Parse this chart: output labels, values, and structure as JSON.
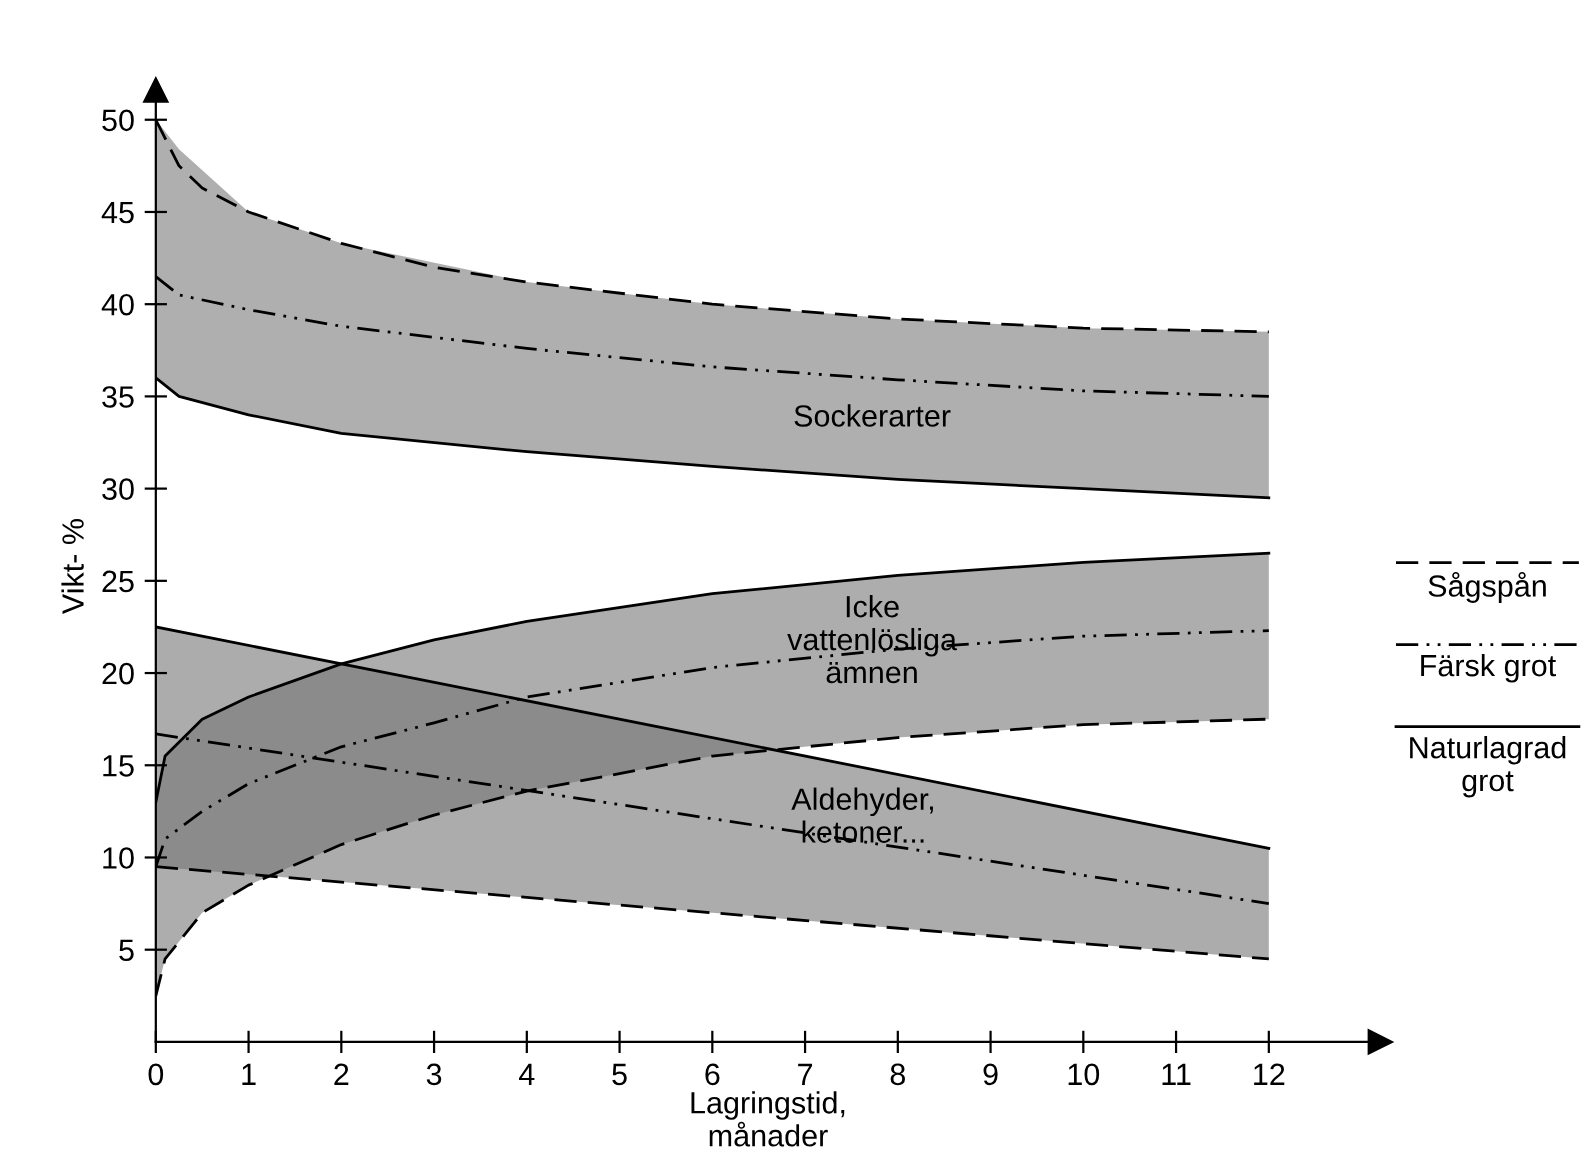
{
  "chart_data": {
    "type": "line",
    "xlabel": "Lagringstid,\nmånader",
    "ylabel": "Vikt- %",
    "xlim": [
      0,
      13.2
    ],
    "ylim": [
      0,
      51.6
    ],
    "xticks": [
      0,
      1,
      2,
      3,
      4,
      5,
      6,
      7,
      8,
      9,
      10,
      11,
      12
    ],
    "yticks": [
      5,
      10,
      15,
      20,
      25,
      30,
      35,
      40,
      45,
      50
    ],
    "grid": false,
    "legend": "right",
    "marker": "none",
    "series": [
      {
        "name": "Sågspån",
        "color": "#000000",
        "line_style": "dashed",
        "x": [
          0,
          0.25,
          0.5,
          1,
          2,
          3,
          4,
          6,
          8,
          10,
          12
        ],
        "values": [
          50,
          47.5,
          46.3,
          45,
          43.3,
          42,
          41.2,
          40,
          39.2,
          38.7,
          38.5
        ]
      },
      {
        "name": "Färsk grot",
        "color": "#000000",
        "line_style": "dashdot",
        "x": [
          0,
          0.25,
          1,
          2,
          4,
          6,
          8,
          10,
          12
        ],
        "values": [
          41.5,
          40.5,
          39.7,
          38.8,
          37.6,
          36.6,
          35.9,
          35.3,
          35
        ],
        "lower": [
          36,
          35,
          34,
          33,
          32,
          31.2,
          30.5,
          30,
          29.5
        ],
        "upper": [
          50,
          48.4,
          45,
          43.3,
          41.2,
          40,
          39.2,
          38.7,
          38.5
        ]
      },
      {
        "name": "Naturlagrad grot",
        "color": "#000000",
        "line_style": "solid",
        "x": [
          0,
          0.25,
          1,
          2,
          4,
          6,
          8,
          10,
          12
        ],
        "values": [
          36,
          35,
          34,
          33,
          32,
          31.2,
          30.5,
          30,
          29.5
        ]
      },
      {
        "color": "#000000",
        "line_style": "solid",
        "x": [
          0,
          0.1,
          0.5,
          1,
          2,
          3,
          4,
          6,
          8,
          10,
          12
        ],
        "values": [
          13,
          15.5,
          17.5,
          18.7,
          20.5,
          21.8,
          22.8,
          24.3,
          25.3,
          26,
          26.5
        ]
      },
      {
        "color": "#000000",
        "line_style": "dashdot",
        "x": [
          0,
          0.1,
          0.5,
          1,
          2,
          3,
          4,
          6,
          8,
          10,
          12
        ],
        "values": [
          9.5,
          11,
          12.5,
          14,
          16,
          17.3,
          18.7,
          20.3,
          21.3,
          22,
          22.3
        ],
        "lower": [
          2.5,
          4.5,
          7,
          8.5,
          10.7,
          12.3,
          13.6,
          15.5,
          16.5,
          17.2,
          17.5
        ],
        "upper": [
          13,
          15.5,
          17.5,
          18.7,
          20.5,
          21.8,
          22.8,
          24.3,
          25.3,
          26,
          26.5
        ]
      },
      {
        "color": "#000000",
        "line_style": "dashed",
        "x": [
          0,
          0.1,
          0.5,
          1,
          2,
          3,
          4,
          6,
          8,
          10,
          12
        ],
        "values": [
          2.5,
          4.5,
          7,
          8.5,
          10.7,
          12.3,
          13.6,
          15.5,
          16.5,
          17.2,
          17.5
        ]
      },
      {
        "color": "#000000",
        "line_style": "solid",
        "x": [
          0,
          12
        ],
        "values": [
          22.5,
          10.5
        ]
      },
      {
        "color": "#000000",
        "line_style": "dashdot",
        "x": [
          0,
          12
        ],
        "values": [
          16.7,
          7.5
        ],
        "lower": [
          9.5,
          4.5
        ],
        "upper": [
          22.5,
          10.5
        ]
      },
      {
        "color": "#000000",
        "line_style": "dashed",
        "x": [
          0,
          12
        ],
        "values": [
          9.5,
          4.5
        ]
      }
    ],
    "annotations": [
      "Sockerarter",
      "Icke\nvattenlösliga\nämnen",
      "Aldehyder,\nketoner..."
    ]
  }
}
